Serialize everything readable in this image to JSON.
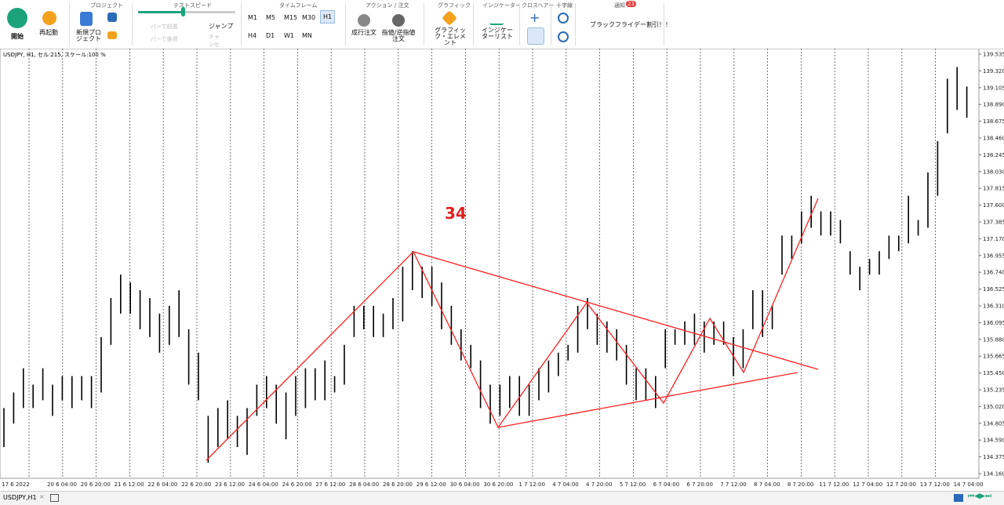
{
  "toolbar": {
    "start": "開始",
    "restart": "再起動",
    "project": {
      "title": "プロジェクト",
      "new": "新規プロ ジェクト"
    },
    "speed": {
      "title": "テストスピード",
      "forward": "バーで前進",
      "back": "バーで後退",
      "jump": "ジャンプ",
      "jump_sub": "キャ ンセル"
    },
    "timeframe": {
      "title": "タイムフレーム",
      "items": [
        "M1",
        "M5",
        "M15",
        "M30",
        "H1",
        "H4",
        "D1",
        "W1",
        "MN"
      ]
    },
    "action": {
      "title": "アクション / 注文",
      "market": "成行注文",
      "pending": "指値/逆指値注文"
    },
    "graphic": {
      "title": "グラフィック",
      "elements": "グラフィック・エレメント"
    },
    "indicator": {
      "title": "インジケーター",
      "list": "インジケーターリスト"
    },
    "crosshair": {
      "title": "クロスヘアー"
    },
    "zoom": {
      "title": "十字線"
    },
    "notice": {
      "title": "通知",
      "count": "23",
      "message": "ブラックフライデー割引！！"
    }
  },
  "chart_data": {
    "type": "ohlc",
    "title": "USDJPY, H1, セル:215, スケール:100 %",
    "annotation": "34",
    "color": "#000000",
    "high": [
      135.0,
      135.2,
      135.51,
      135.3,
      135.51,
      135.3,
      135.41,
      135.41,
      135.41,
      135.41,
      135.91,
      136.41,
      136.71,
      136.61,
      136.51,
      136.41,
      136.21,
      136.31,
      136.51,
      136.01,
      135.71,
      134.9,
      135.0,
      135.1,
      134.9,
      135.0,
      135.3,
      135.41,
      135.3,
      135.2,
      135.41,
      135.51,
      135.51,
      135.61,
      135.41,
      135.81,
      136.31,
      136.31,
      136.31,
      136.21,
      136.41,
      136.81,
      137.01,
      136.81,
      136.81,
      136.61,
      136.31,
      136.01,
      135.81,
      135.61,
      135.3,
      135.3,
      135.41,
      135.41,
      135.3,
      135.51,
      135.61,
      135.71,
      135.81,
      136.31,
      136.41,
      136.21,
      136.11,
      136.01,
      135.81,
      135.51,
      135.51,
      135.41,
      136.01,
      136.01,
      136.11,
      136.21,
      136.11,
      136.11,
      136.11,
      135.91,
      136.01,
      136.51,
      136.51,
      136.31,
      137.21,
      137.21,
      137.52,
      137.72,
      137.52,
      137.52,
      137.41,
      137.01,
      136.81,
      136.91,
      137.01,
      137.21,
      137.21,
      137.72,
      137.41,
      138.02,
      138.42,
      139.22,
      139.37,
      139.12
    ],
    "low": [
      134.5,
      134.8,
      135.0,
      135.0,
      135.1,
      134.9,
      135.1,
      135.0,
      135.1,
      135.0,
      135.2,
      135.81,
      136.21,
      136.21,
      136.01,
      135.91,
      135.71,
      135.81,
      135.91,
      135.3,
      135.1,
      134.3,
      134.5,
      134.6,
      134.5,
      134.4,
      134.9,
      135.0,
      134.8,
      134.6,
      134.9,
      135.0,
      135.1,
      135.1,
      135.2,
      135.3,
      135.91,
      136.01,
      135.91,
      135.91,
      136.01,
      136.11,
      136.51,
      136.41,
      136.31,
      136.01,
      135.81,
      135.61,
      135.51,
      135.0,
      134.8,
      134.9,
      135.0,
      134.9,
      134.9,
      135.1,
      135.2,
      135.41,
      135.61,
      135.71,
      136.01,
      135.81,
      135.71,
      135.61,
      135.3,
      135.1,
      135.1,
      135.0,
      135.51,
      135.81,
      135.81,
      135.81,
      135.71,
      135.81,
      135.81,
      135.41,
      135.51,
      136.01,
      135.91,
      136.01,
      136.71,
      136.91,
      137.11,
      137.31,
      137.21,
      137.21,
      137.11,
      136.71,
      136.51,
      136.71,
      136.71,
      136.91,
      137.01,
      137.11,
      137.21,
      137.31,
      137.72,
      138.52,
      138.82,
      138.72
    ],
    "ylim": [
      134.16,
      139.535
    ],
    "yticks": [
      {
        "value": 139.535,
        "label": "139.535"
      },
      {
        "value": 139.32,
        "label": "139.320"
      },
      {
        "value": 139.105,
        "label": "139.105"
      },
      {
        "value": 138.89,
        "label": "138.890"
      },
      {
        "value": 138.675,
        "label": "138.675"
      },
      {
        "value": 138.46,
        "label": "138.460"
      },
      {
        "value": 138.245,
        "label": "138.245"
      },
      {
        "value": 138.03,
        "label": "138.030"
      },
      {
        "value": 137.815,
        "label": "137.815"
      },
      {
        "value": 137.6,
        "label": "137.600"
      },
      {
        "value": 137.385,
        "label": "137.385"
      },
      {
        "value": 137.17,
        "label": "137.170"
      },
      {
        "value": 136.955,
        "label": "136.955"
      },
      {
        "value": 136.74,
        "label": "136.740"
      },
      {
        "value": 136.525,
        "label": "136.525"
      },
      {
        "value": 136.31,
        "label": "136.310"
      },
      {
        "value": 136.095,
        "label": "136.095"
      },
      {
        "value": 135.88,
        "label": "135.880"
      },
      {
        "value": 135.665,
        "label": "135.665"
      },
      {
        "value": 135.45,
        "label": "135.450"
      },
      {
        "value": 135.235,
        "label": "135.235"
      },
      {
        "value": 135.02,
        "label": "135.020"
      },
      {
        "value": 134.805,
        "label": "134.805"
      },
      {
        "value": 134.59,
        "label": "134.590"
      },
      {
        "value": 134.375,
        "label": "134.375"
      },
      {
        "value": 134.16,
        "label": "134.160"
      }
    ],
    "x_labels": [
      "17 6 2022",
      "20 6 04:00",
      "20 6 20:00",
      "21 6 12:00",
      "22 6 04:00",
      "22 6 20:00",
      "23 6 12:00",
      "24 6 04:00",
      "24 6 20:00",
      "27 6 12:00",
      "28 6 04:00",
      "28 6 20:00",
      "29 6 12:00",
      "30 6 04:00",
      "30 6 20:00",
      "1 7 12:00",
      "4 7 04:00",
      "4 7 20:00",
      "5 7 12:00",
      "6 7 04:00",
      "6 7 20:00",
      "7 7 12:00",
      "8 7 04:00",
      "8 7 20:00",
      "11 7 12:00",
      "12 7 04:00",
      "12 7 20:00",
      "13 7 12:00",
      "14 7 04:00"
    ]
  },
  "tabs": {
    "active": "USDJPY,H1",
    "close": "×"
  }
}
